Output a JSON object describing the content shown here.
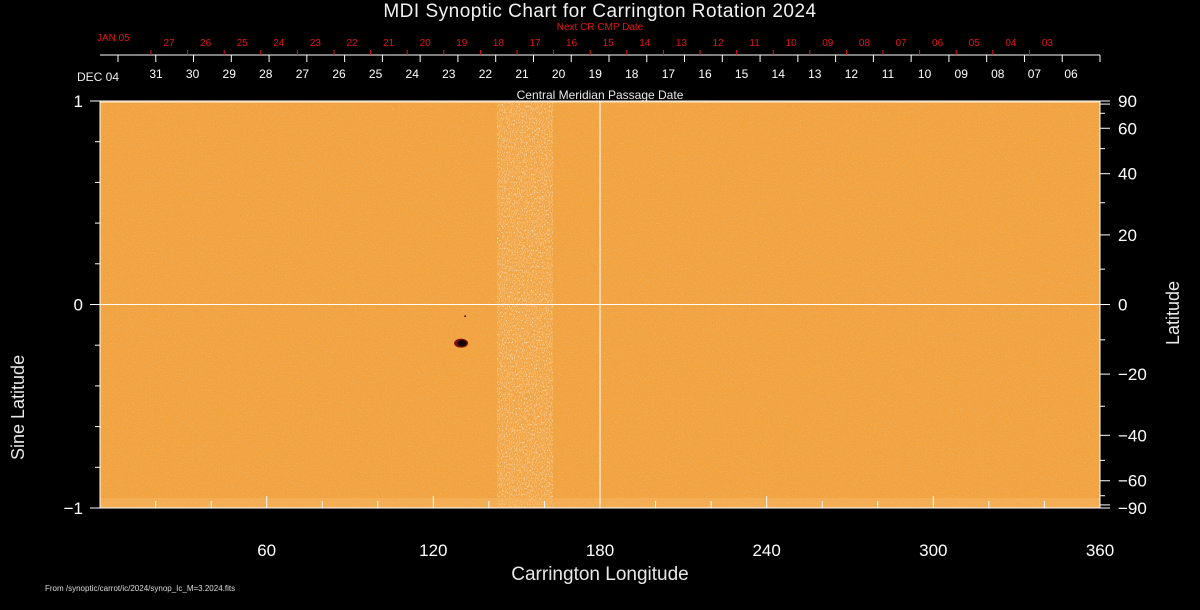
{
  "chart_data": {
    "type": "heatmap",
    "title": "MDI Synoptic Chart for Carrington Rotation 2024",
    "xlabel": "Carrington Longitude",
    "ylabel_left": "Sine Latitude",
    "ylabel_right": "Latitude",
    "xlim": [
      0,
      360
    ],
    "ylim": [
      -1,
      1
    ],
    "x_ticks": [
      60,
      120,
      180,
      240,
      300,
      360
    ],
    "y_ticks_left": [
      "1",
      "0",
      "−1"
    ],
    "y_ticks_left_values": [
      1,
      0,
      -1
    ],
    "y_ticks_right": [
      90,
      60,
      40,
      20,
      0,
      -20,
      -40,
      -60,
      -90
    ],
    "grid_lines": {
      "x": 180,
      "y": 0
    },
    "cmp_axis_label": "Central Meridian Passage Date",
    "cmp_start_label": "DEC 04",
    "cmp_dates": [
      "31",
      "30",
      "29",
      "28",
      "27",
      "26",
      "25",
      "24",
      "23",
      "22",
      "21",
      "20",
      "19",
      "18",
      "17",
      "16",
      "15",
      "14",
      "13",
      "12",
      "11",
      "10",
      "09",
      "08",
      "07",
      "06"
    ],
    "next_cr_label": "Next CR CMP Date",
    "next_cr_start_label": "JAN 05",
    "next_cr_dates": [
      "27",
      "26",
      "25",
      "24",
      "23",
      "22",
      "21",
      "20",
      "19",
      "18",
      "17",
      "16",
      "15",
      "14",
      "13",
      "12",
      "11",
      "10",
      "09",
      "08",
      "07",
      "06",
      "05",
      "04",
      "03"
    ],
    "features": [
      {
        "name": "sunspot",
        "longitude": 130,
        "sine_latitude": -0.19
      }
    ],
    "background_color": "#f3a23e",
    "text_color": "#ffffff",
    "accent_color": "#e01818"
  },
  "footer": {
    "source": "From /synoptic/carrot/ic/2024/synop_Ic_M=3.2024.fits"
  }
}
